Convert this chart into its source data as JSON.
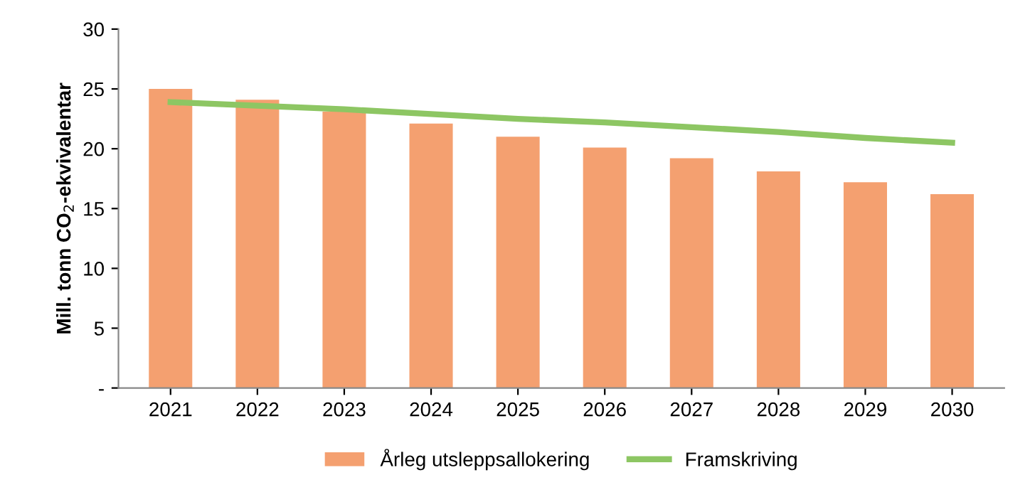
{
  "chart_data": {
    "type": "bar",
    "ylabel": "Mill. tonn CO$_{2}$-ekvivalentar",
    "categories": [
      "2021",
      "2022",
      "2023",
      "2024",
      "2025",
      "2026",
      "2027",
      "2028",
      "2029",
      "2030"
    ],
    "series": [
      {
        "name": "Årleg utsleppsallokering",
        "color": "#f4a070",
        "values": [
          25.0,
          24.1,
          23.1,
          22.1,
          21.0,
          20.1,
          19.2,
          18.1,
          17.2,
          16.2
        ]
      },
      {
        "name": "Framskriving",
        "type": "line",
        "color": "#8dc663",
        "values": [
          23.9,
          23.6,
          23.3,
          22.9,
          22.5,
          22.2,
          21.8,
          21.4,
          20.9,
          20.5
        ]
      }
    ],
    "ylim": [
      0,
      30
    ],
    "yticks": [
      {
        "value": 0,
        "label": "-"
      },
      5,
      10,
      15,
      20,
      25,
      30
    ],
    "grid": false,
    "legend": "bottom",
    "marker": "none",
    "line_style": "solid"
  }
}
